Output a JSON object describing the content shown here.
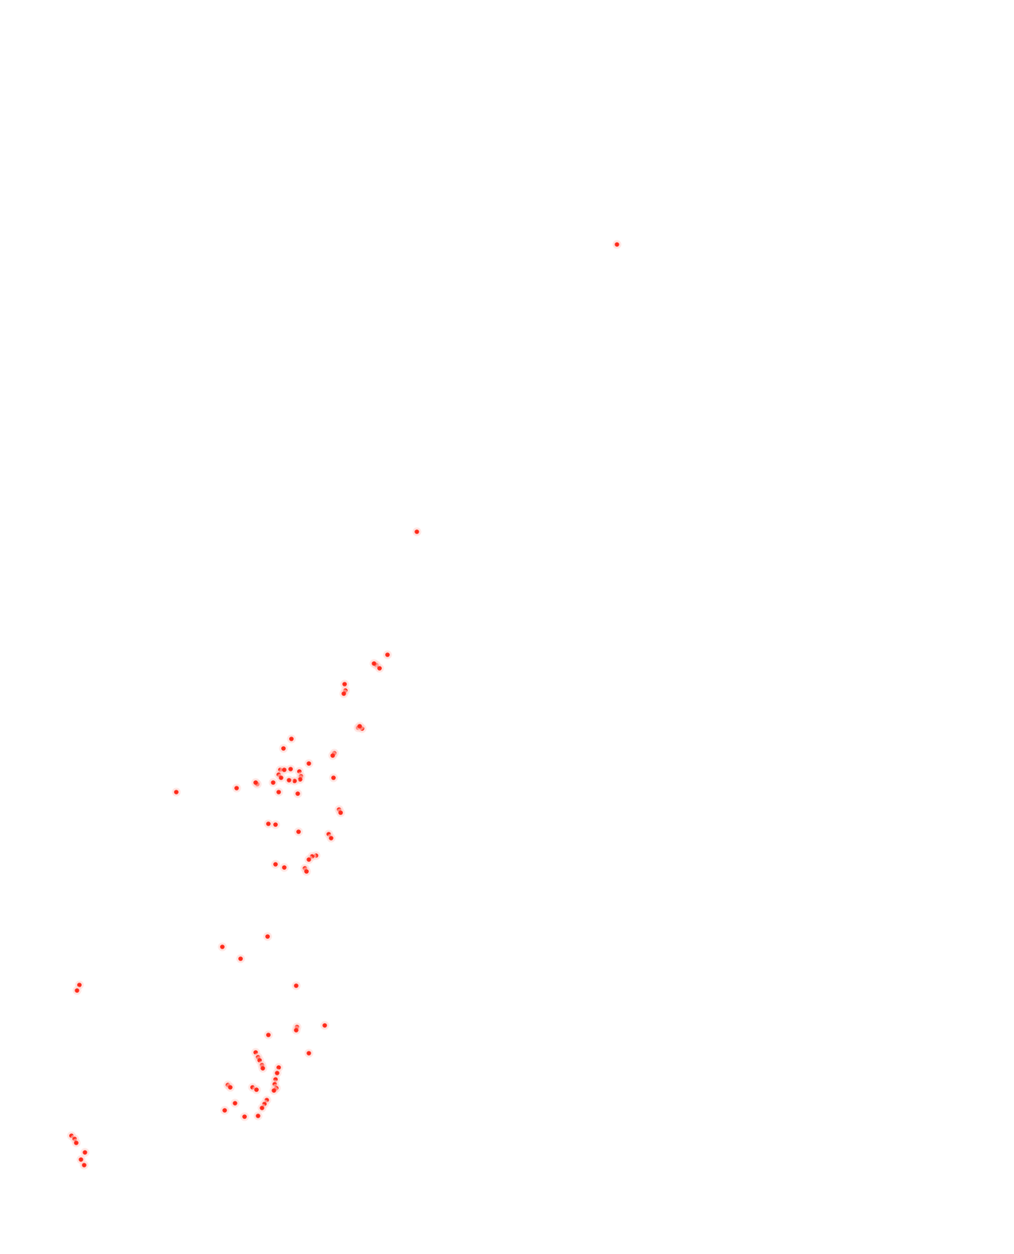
{
  "map": {
    "marker_color": "#ff2a1a",
    "marker_halo_color": "#ffd2cc",
    "background_color": "#ffffff",
    "marker_icon": "red-dot-marker",
    "point_count": 98
  }
}
